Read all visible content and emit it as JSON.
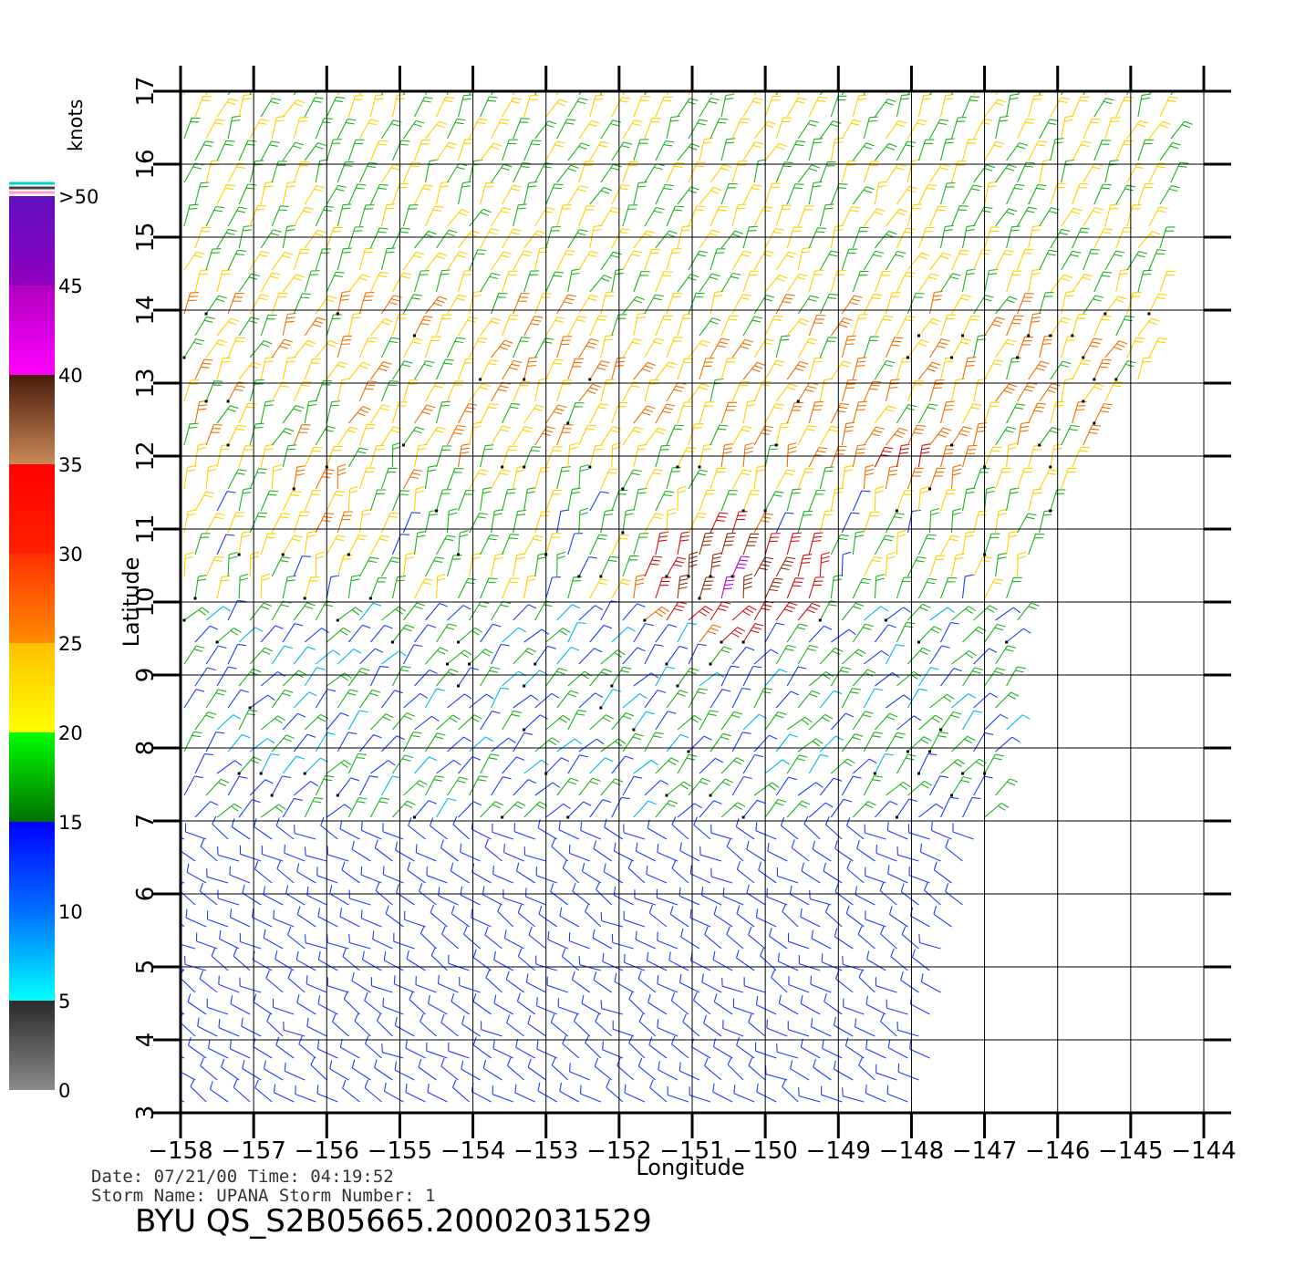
{
  "chart_data": {
    "type": "scatter",
    "plot_kind": "wind-barbs",
    "xlabel": "Longitude",
    "ylabel": "Latitude",
    "xlim": [
      -158,
      -144
    ],
    "ylim": [
      3,
      17
    ],
    "grid": true,
    "x_ticks": [
      "−158",
      "−157",
      "−156",
      "−155",
      "−154",
      "−153",
      "−152",
      "−151",
      "−150",
      "−149",
      "−148",
      "−147",
      "−146",
      "−145",
      "−144"
    ],
    "y_ticks": [
      "3",
      "4",
      "5",
      "6",
      "7",
      "8",
      "9",
      "10",
      "11",
      "12",
      "13",
      "14",
      "15",
      "16",
      "17"
    ],
    "colorbar": {
      "title": "knots",
      "labels": [
        "0",
        "5",
        "10",
        "15",
        "20",
        "25",
        "30",
        "35",
        "40",
        "45",
        ">50"
      ],
      "bands": [
        {
          "from": 0,
          "to": 5,
          "colors": [
            "#8a8a8a",
            "#2a2a2a"
          ]
        },
        {
          "from": 5,
          "to": 10,
          "colors": [
            "#00ffff",
            "#0070ff"
          ]
        },
        {
          "from": 10,
          "to": 15,
          "colors": [
            "#0070ff",
            "#0000ff"
          ]
        },
        {
          "from": 15,
          "to": 20,
          "colors": [
            "#007000",
            "#00ff00"
          ]
        },
        {
          "from": 20,
          "to": 25,
          "colors": [
            "#ffff00",
            "#ffc000"
          ]
        },
        {
          "from": 25,
          "to": 30,
          "colors": [
            "#ff8c00",
            "#ff3000"
          ]
        },
        {
          "from": 30,
          "to": 35,
          "colors": [
            "#ff2000",
            "#ff0000"
          ]
        },
        {
          "from": 35,
          "to": 40,
          "colors": [
            "#c88a5a",
            "#4a1a0a"
          ]
        },
        {
          "from": 40,
          "to": 45,
          "colors": [
            "#ff00ff",
            "#b000c0"
          ]
        },
        {
          "from": 45,
          "to": 50,
          "colors": [
            "#9000c0",
            "#6010c0"
          ]
        }
      ]
    },
    "speed_regions": [
      {
        "lat": [
          3,
          7
        ],
        "speed_knots": "10-15",
        "dominant_color": "#1e3cff"
      },
      {
        "lat": [
          7,
          10
        ],
        "speed_knots": "5-30",
        "dominant_color": "#1e3cff"
      },
      {
        "lat": [
          9,
          11.5
        ],
        "lon": [
          -152,
          -149
        ],
        "speed_knots": "30-45",
        "dominant_color": "#d01010"
      },
      {
        "lat": [
          11,
          14
        ],
        "speed_knots": "15-30",
        "dominant_color": "#ffd000"
      },
      {
        "lat": [
          14,
          17
        ],
        "speed_knots": "15-25",
        "dominant_color": "#20b020"
      }
    ]
  },
  "annotation": {
    "date_line": "Date: 07/21/00   Time: 04:19:52",
    "storm_line": "Storm Name: UPANA   Storm Number: 1",
    "file_name": "BYU QS_S2B05665.20002031529"
  }
}
